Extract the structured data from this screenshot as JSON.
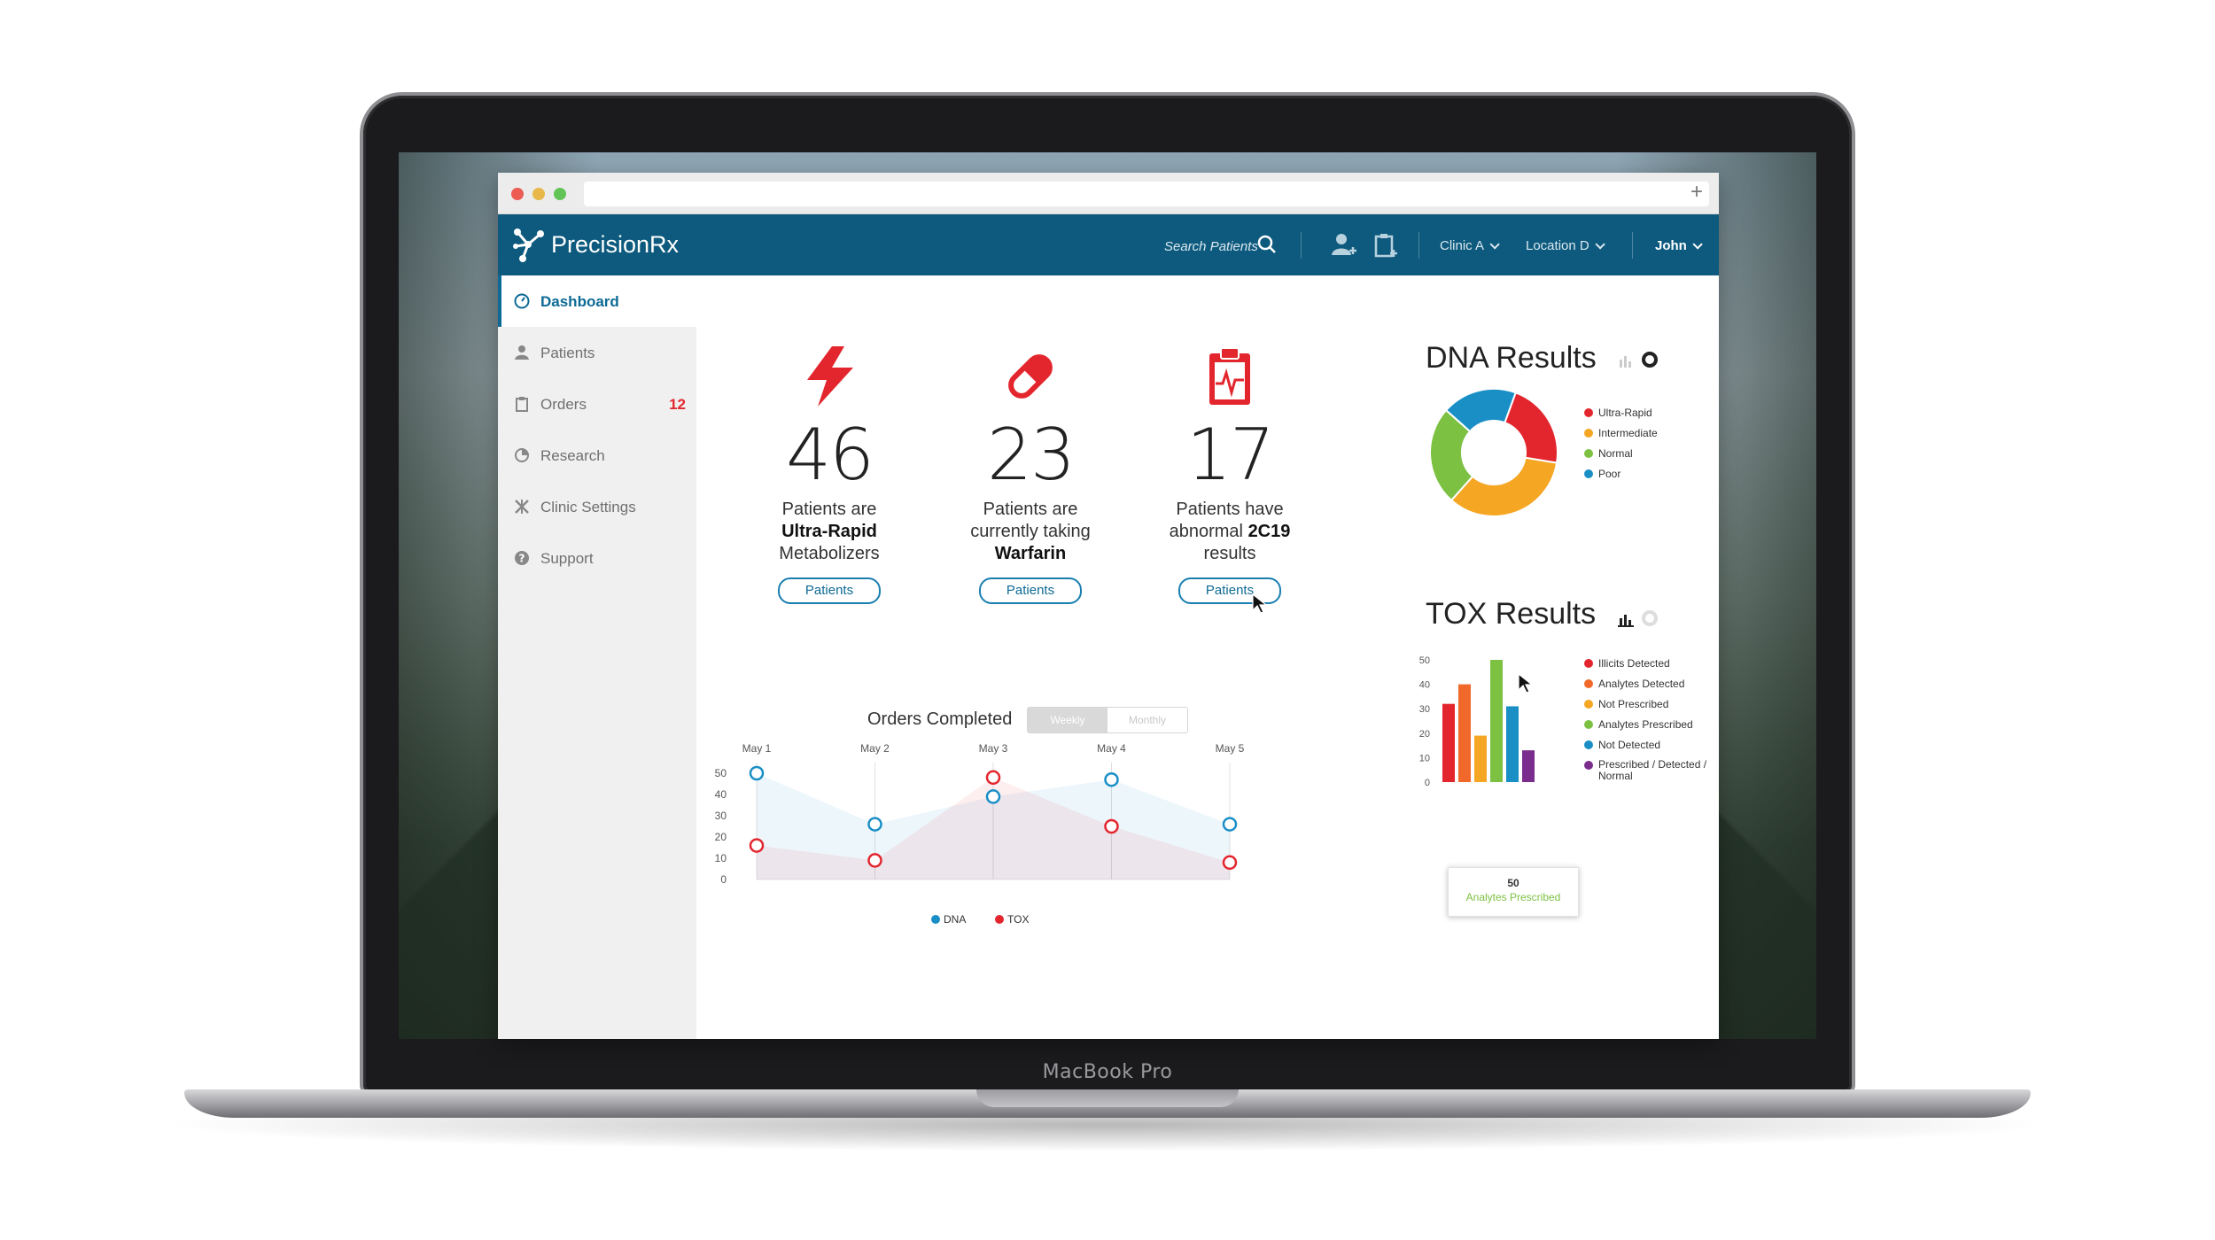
{
  "device": {
    "label": "MacBook Pro"
  },
  "browser": {
    "new_tab_label": "+"
  },
  "app": {
    "brand": "PrecisionRx",
    "search_placeholder": "Search Patients",
    "clinic": "Clinic A",
    "location": "Location D",
    "user": "John"
  },
  "sidebar": {
    "items": [
      {
        "label": "Dashboard",
        "icon": "dashboard-icon",
        "active": true
      },
      {
        "label": "Patients",
        "icon": "user-icon"
      },
      {
        "label": "Orders",
        "icon": "clipboard-icon",
        "badge": "12"
      },
      {
        "label": "Research",
        "icon": "pie-icon"
      },
      {
        "label": "Clinic Settings",
        "icon": "tools-icon"
      },
      {
        "label": "Support",
        "icon": "help-icon"
      }
    ]
  },
  "stats": [
    {
      "value": "46",
      "line1": "Patients are",
      "line2": "Ultra-Rapid",
      "line3": "Metabolizers",
      "button": "Patients",
      "icon": "lightning-icon"
    },
    {
      "value": "23",
      "line1": "Patients are",
      "line2": "currently taking",
      "line3": "Warfarin",
      "button": "Patients",
      "icon": "pill-icon"
    },
    {
      "value": "17",
      "line1": "Patients have",
      "line2": "abnormal",
      "line2b": "2C19",
      "line3": "results",
      "button": "Patients",
      "icon": "report-icon"
    }
  ],
  "orders_chart": {
    "title": "Orders Completed",
    "toggle_on": "Weekly",
    "toggle_off": "Monthly"
  },
  "dna": {
    "title": "DNA Results"
  },
  "tox": {
    "title": "TOX Results",
    "tooltip_value": "50",
    "tooltip_label": "Analytes Prescribed"
  },
  "colors": {
    "brand": "#0d5a7e",
    "accent": "#0d6a95",
    "red": "#e3262e",
    "orange": "#f5a623",
    "green": "#7cc142",
    "blue": "#1a8fc6",
    "purple": "#7b2d8e",
    "tox_orange": "#f0682a"
  },
  "chart_data": [
    {
      "type": "area",
      "title": "Orders Completed",
      "categories": [
        "May 1",
        "May 2",
        "May 3",
        "May 4",
        "May 5"
      ],
      "ylim": [
        0,
        50
      ],
      "yticks": [
        0,
        10,
        20,
        30,
        40,
        50
      ],
      "legend": "bottom",
      "series": [
        {
          "name": "DNA",
          "values": [
            50,
            26,
            39,
            47,
            26
          ],
          "color": "#1a8fc6"
        },
        {
          "name": "TOX",
          "values": [
            16,
            9,
            48,
            25,
            8
          ],
          "color": "#e3262e"
        }
      ]
    },
    {
      "type": "pie",
      "title": "DNA Results",
      "legend": "right",
      "slices": [
        {
          "name": "Ultra-Rapid",
          "value": 22,
          "color": "#e3262e"
        },
        {
          "name": "Intermediate",
          "value": 34,
          "color": "#f5a623"
        },
        {
          "name": "Normal",
          "value": 25,
          "color": "#7cc142"
        },
        {
          "name": "Poor",
          "value": 19,
          "color": "#1a8fc6"
        }
      ]
    },
    {
      "type": "bar",
      "title": "TOX Results",
      "ylim": [
        0,
        50
      ],
      "yticks": [
        0,
        10,
        20,
        30,
        40,
        50
      ],
      "legend": "right",
      "categories": [
        "Illicits Detected",
        "Analytes Detected",
        "Not Prescribed",
        "Analytes Prescribed",
        "Not Detected",
        "Prescribed / Detected / Normal"
      ],
      "values": [
        32,
        40,
        19,
        50,
        31,
        13
      ],
      "colors": [
        "#e3262e",
        "#f0682a",
        "#f5a623",
        "#7cc142",
        "#1a8fc6",
        "#7b2d8e"
      ]
    }
  ]
}
